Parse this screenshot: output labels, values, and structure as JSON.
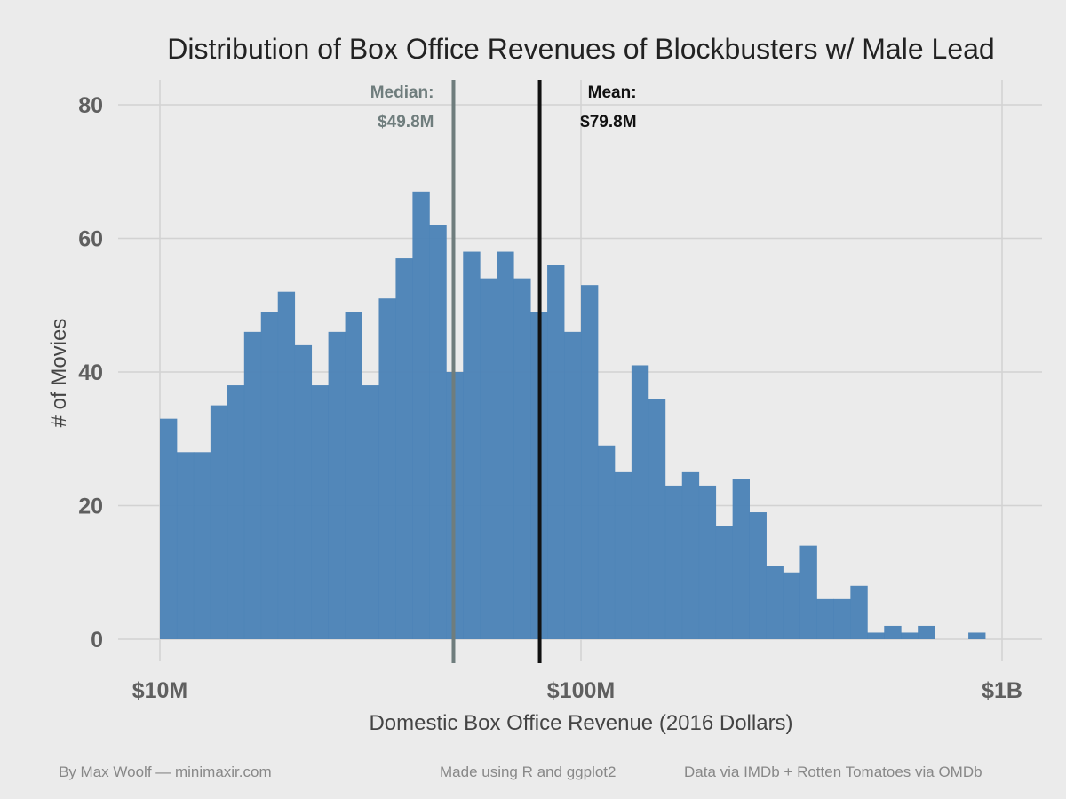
{
  "chart_data": {
    "type": "bar",
    "subtype": "histogram",
    "title": "Distribution of Box Office Revenues of Blockbusters w/ Male Lead",
    "xlabel": "Domestic Box Office Revenue (2016 Dollars)",
    "ylabel": "# of Movies",
    "x_scale": "log10",
    "xlim": [
      10000000,
      1000000000
    ],
    "ylim": [
      0,
      80
    ],
    "x_ticks": [
      {
        "value": 10000000,
        "label": "$10M"
      },
      {
        "value": 100000000,
        "label": "$100M"
      },
      {
        "value": 1000000000,
        "label": "$1B"
      }
    ],
    "y_ticks": [
      {
        "value": 0,
        "label": "0"
      },
      {
        "value": 20,
        "label": "20"
      },
      {
        "value": 40,
        "label": "40"
      },
      {
        "value": 60,
        "label": "60"
      },
      {
        "value": 80,
        "label": "80"
      }
    ],
    "grid": true,
    "bin_count": 50,
    "bin_range": [
      10000000,
      1000000000
    ],
    "counts": [
      33,
      28,
      28,
      35,
      38,
      46,
      49,
      52,
      44,
      38,
      46,
      49,
      38,
      51,
      57,
      67,
      62,
      40,
      58,
      54,
      58,
      54,
      49,
      56,
      46,
      53,
      29,
      25,
      41,
      36,
      23,
      25,
      23,
      17,
      24,
      19,
      11,
      10,
      14,
      6,
      6,
      8,
      1,
      2,
      1,
      2,
      0,
      0,
      1,
      0
    ],
    "bar_color": "#4a82b6",
    "reference_lines": [
      {
        "name": "Median",
        "label": "Median:",
        "value_label": "$49.8M",
        "value": 49800000,
        "color": "#6f7d7d"
      },
      {
        "name": "Mean",
        "label": "Mean:",
        "value_label": "$79.8M",
        "value": 79800000,
        "color": "#111111"
      }
    ]
  },
  "footer": {
    "left": "By Max Woolf — minimaxir.com",
    "center": "Made using R and ggplot2",
    "right": "Data via IMDb + Rotten Tomatoes via OMDb"
  }
}
